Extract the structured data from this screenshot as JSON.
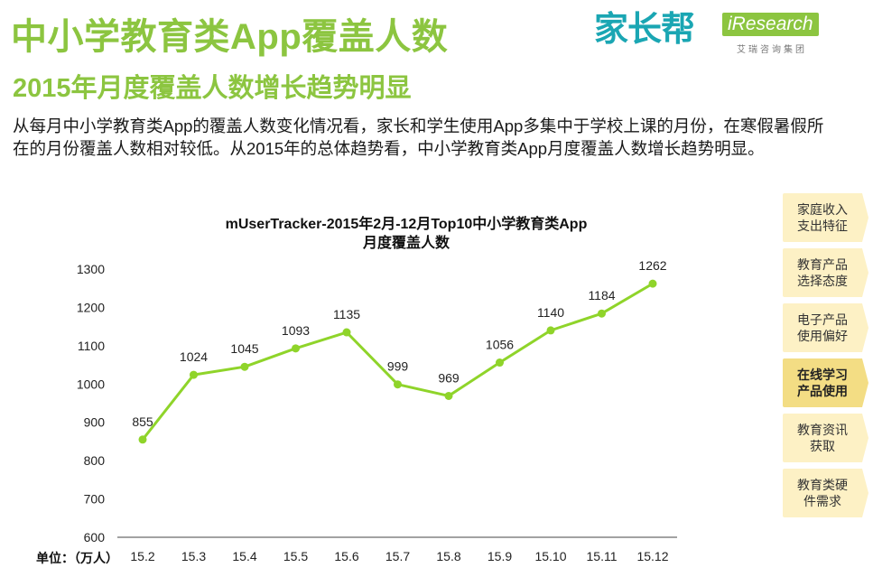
{
  "header": {
    "title": "中小学教育类App覆盖人数",
    "subtitle": "2015年月度覆盖人数增长趋势明显"
  },
  "description": "从每月中小学教育类App的覆盖人数变化情况看，家长和学生使用App多集中于学校上课的月份，在寒假暑假所在的月份覆盖人数相对较低。从2015年的总体趋势看，中小学教育类App月度覆盖人数增长趋势明显。",
  "logos": {
    "jiazhangbang": "家长帮",
    "iresearch": "iResearch",
    "iresearch_cn": "艾瑞咨询集团"
  },
  "sidebar": {
    "items": [
      {
        "label": "家庭收入\n支出特征",
        "active": false
      },
      {
        "label": "教育产品\n选择态度",
        "active": false
      },
      {
        "label": "电子产品\n使用偏好",
        "active": false
      },
      {
        "label": "在线学习\n产品使用",
        "active": true
      },
      {
        "label": "教育资讯\n获取",
        "active": false
      },
      {
        "label": "教育类硬\n件需求",
        "active": false
      }
    ]
  },
  "unit_label": "单位：（万人）",
  "colors": {
    "accent": "#8cc540",
    "line": "#8fd42a",
    "sidebar": "#fdf1c5",
    "sidebar_active": "#f3dd84"
  },
  "chart_data": {
    "type": "line",
    "title": "mUserTracker-2015年2月-12月Top10中小学教育类App\n月度覆盖人数",
    "categories": [
      "15.2",
      "15.3",
      "15.4",
      "15.5",
      "15.6",
      "15.7",
      "15.8",
      "15.9",
      "15.10",
      "15.11",
      "15.12"
    ],
    "values": [
      855,
      1024,
      1045,
      1093,
      1135,
      999,
      969,
      1056,
      1140,
      1184,
      1262
    ],
    "ylim": [
      600,
      1300
    ],
    "yticks": [
      600,
      700,
      800,
      900,
      1000,
      1100,
      1200,
      1300
    ],
    "grid": false
  }
}
